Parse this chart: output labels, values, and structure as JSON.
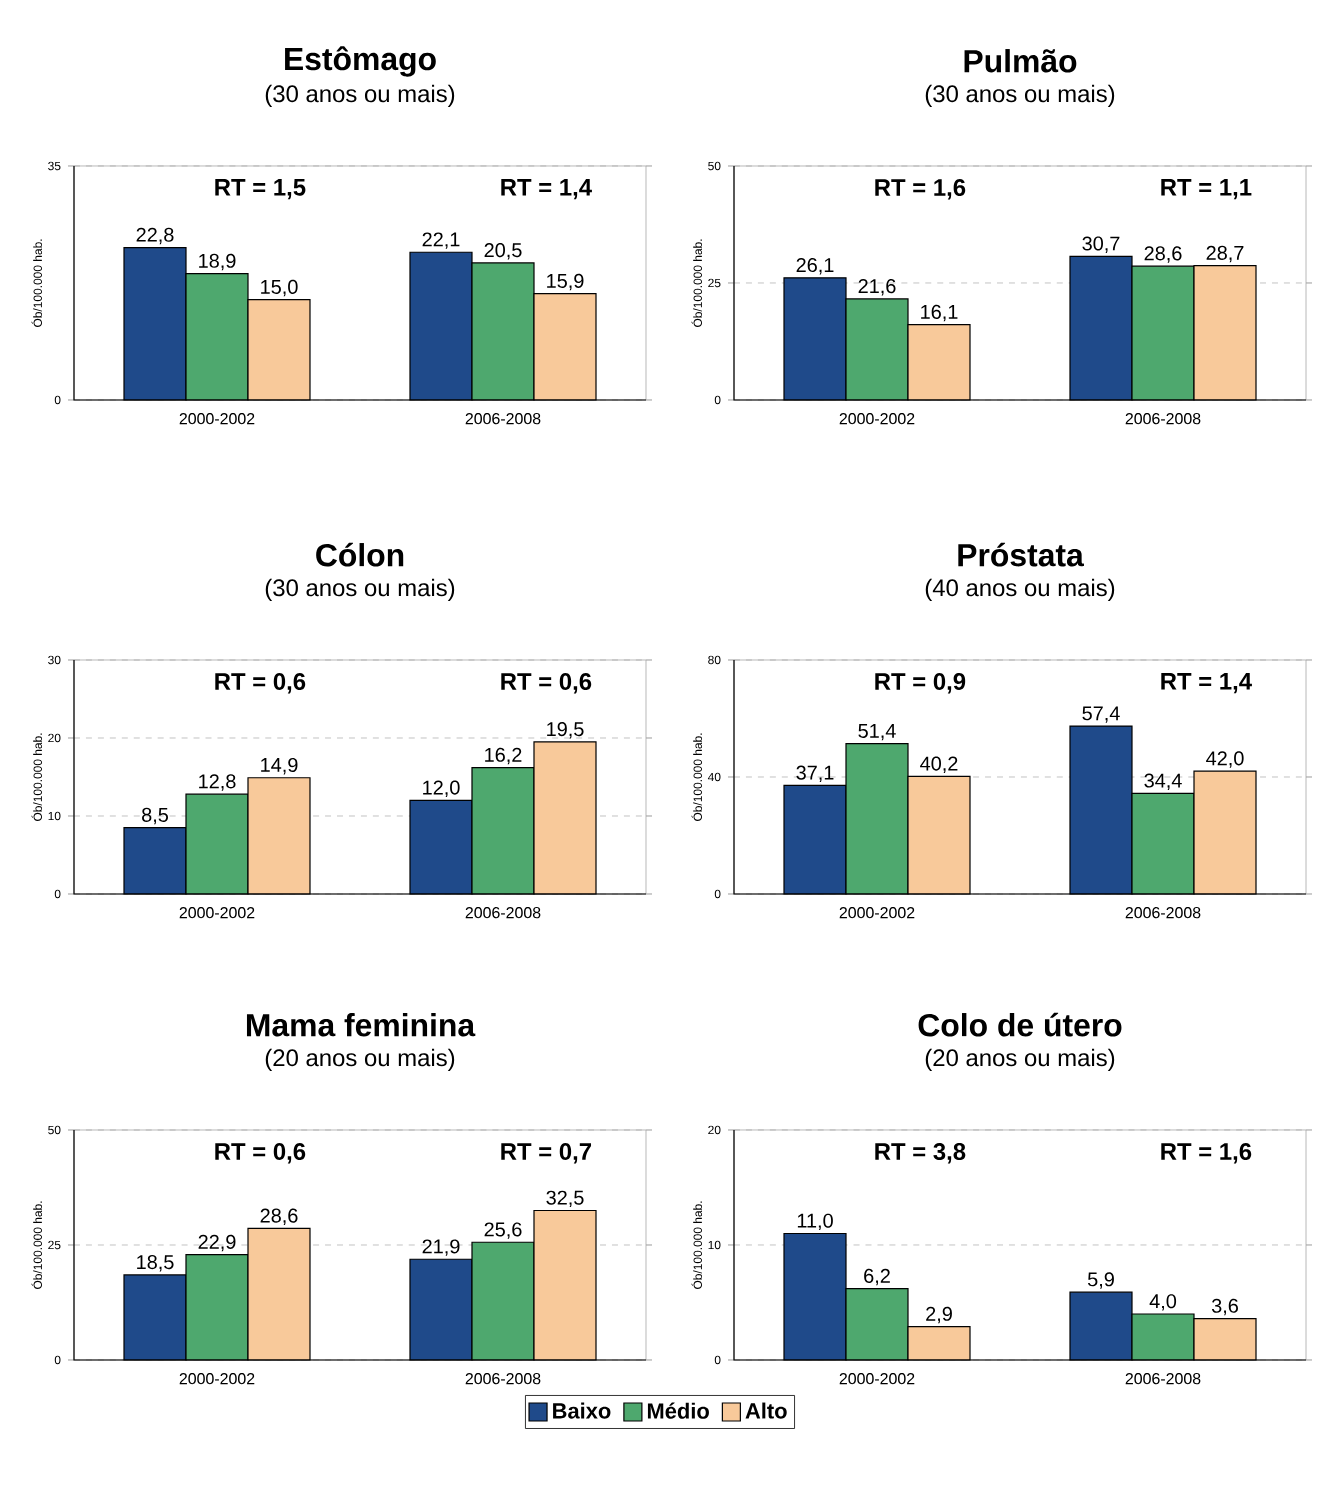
{
  "chart_data": [
    {
      "type": "bar",
      "title": "Estômago",
      "subtitle": "(30 anos ou mais)",
      "ylabel": "Ób/100.000 hab.",
      "categories": [
        "2000-2002",
        "2006-2008"
      ],
      "ylim": [
        0,
        35
      ],
      "yticks": [
        0,
        35
      ],
      "grid": "y",
      "annotations": [
        "RT = 1,5",
        "RT = 1,4"
      ],
      "series": [
        {
          "color": "#1f4a8a",
          "values": [
            22.8,
            22.1
          ],
          "value_labels": [
            "22,8",
            "22,1"
          ]
        },
        {
          "color": "#4ea86e",
          "values": [
            18.9,
            20.5
          ],
          "value_labels": [
            "18,9",
            "20,5"
          ]
        },
        {
          "color": "#f8c99a",
          "values": [
            15.0,
            15.9
          ],
          "value_labels": [
            "15,0",
            "15,9"
          ]
        }
      ]
    },
    {
      "type": "bar",
      "title": "Pulmão",
      "subtitle": "(30 anos ou mais)",
      "ylabel": "Ób/100.000 hab.",
      "categories": [
        "2000-2002",
        "2006-2008"
      ],
      "ylim": [
        0,
        50
      ],
      "yticks": [
        0,
        25,
        50
      ],
      "grid": "y",
      "annotations": [
        "RT = 1,6",
        "RT = 1,1"
      ],
      "series": [
        {
          "color": "#1f4a8a",
          "values": [
            26.1,
            30.7
          ],
          "value_labels": [
            "26,1",
            "30,7"
          ]
        },
        {
          "color": "#4ea86e",
          "values": [
            21.6,
            28.6
          ],
          "value_labels": [
            "21,6",
            "28,6"
          ]
        },
        {
          "color": "#f8c99a",
          "values": [
            16.1,
            28.7
          ],
          "value_labels": [
            "16,1",
            "28,7"
          ]
        }
      ]
    },
    {
      "type": "bar",
      "title": "Cólon",
      "subtitle": "(30 anos ou mais)",
      "ylabel": "Ób/100.000 hab.",
      "categories": [
        "2000-2002",
        "2006-2008"
      ],
      "ylim": [
        0,
        30
      ],
      "yticks": [
        0,
        10,
        20,
        30
      ],
      "grid": "y",
      "annotations": [
        "RT = 0,6",
        "RT = 0,6"
      ],
      "series": [
        {
          "color": "#1f4a8a",
          "values": [
            8.5,
            12.0
          ],
          "value_labels": [
            "8,5",
            "12,0"
          ]
        },
        {
          "color": "#4ea86e",
          "values": [
            12.8,
            16.2
          ],
          "value_labels": [
            "12,8",
            "16,2"
          ]
        },
        {
          "color": "#f8c99a",
          "values": [
            14.9,
            19.5
          ],
          "value_labels": [
            "14,9",
            "19,5"
          ]
        }
      ]
    },
    {
      "type": "bar",
      "title": "Próstata",
      "subtitle": "(40 anos ou mais)",
      "ylabel": "Ób/100.000 hab.",
      "categories": [
        "2000-2002",
        "2006-2008"
      ],
      "ylim": [
        0,
        80
      ],
      "yticks": [
        0,
        40,
        80
      ],
      "grid": "y",
      "annotations": [
        "RT = 0,9",
        "RT = 1,4"
      ],
      "series": [
        {
          "color": "#1f4a8a",
          "values": [
            37.1,
            57.4
          ],
          "value_labels": [
            "37,1",
            "57,4"
          ]
        },
        {
          "color": "#4ea86e",
          "values": [
            51.4,
            34.4
          ],
          "value_labels": [
            "51,4",
            "34,4"
          ]
        },
        {
          "color": "#f8c99a",
          "values": [
            40.2,
            42.0
          ],
          "value_labels": [
            "40,2",
            "42,0"
          ]
        }
      ]
    },
    {
      "type": "bar",
      "title": "Mama feminina",
      "subtitle": "(20 anos ou mais)",
      "ylabel": "Ób/100.000 hab.",
      "categories": [
        "2000-2002",
        "2006-2008"
      ],
      "ylim": [
        0,
        50
      ],
      "yticks": [
        0,
        25,
        50
      ],
      "grid": "y",
      "legend": "bottom",
      "annotations": [
        "RT = 0,6",
        "RT = 0,7"
      ],
      "series": [
        {
          "name": "Baixo",
          "color": "#1f4a8a",
          "values": [
            18.5,
            21.9
          ],
          "value_labels": [
            "18,5",
            "21,9"
          ]
        },
        {
          "name": "Médio",
          "color": "#4ea86e",
          "values": [
            22.9,
            25.6
          ],
          "value_labels": [
            "22,9",
            "25,6"
          ]
        },
        {
          "name": "Alto",
          "color": "#f8c99a",
          "values": [
            28.6,
            32.5
          ],
          "value_labels": [
            "28,6",
            "32,5"
          ]
        }
      ]
    },
    {
      "type": "bar",
      "title": "Colo de útero",
      "subtitle": "(20 anos ou mais)",
      "ylabel": "Ób/100.000 hab.",
      "categories": [
        "2000-2002",
        "2006-2008"
      ],
      "ylim": [
        0,
        20
      ],
      "yticks": [
        0,
        10,
        20
      ],
      "grid": "y",
      "annotations": [
        "RT = 3,8",
        "RT = 1,6"
      ],
      "series": [
        {
          "color": "#1f4a8a",
          "values": [
            11.0,
            5.9
          ],
          "value_labels": [
            "11,0",
            "5,9"
          ]
        },
        {
          "color": "#4ea86e",
          "values": [
            6.2,
            4.0
          ],
          "value_labels": [
            "6,2",
            "4,0"
          ]
        },
        {
          "color": "#f8c99a",
          "values": [
            2.9,
            3.6
          ],
          "value_labels": [
            "2,9",
            "3,6"
          ]
        }
      ]
    }
  ]
}
